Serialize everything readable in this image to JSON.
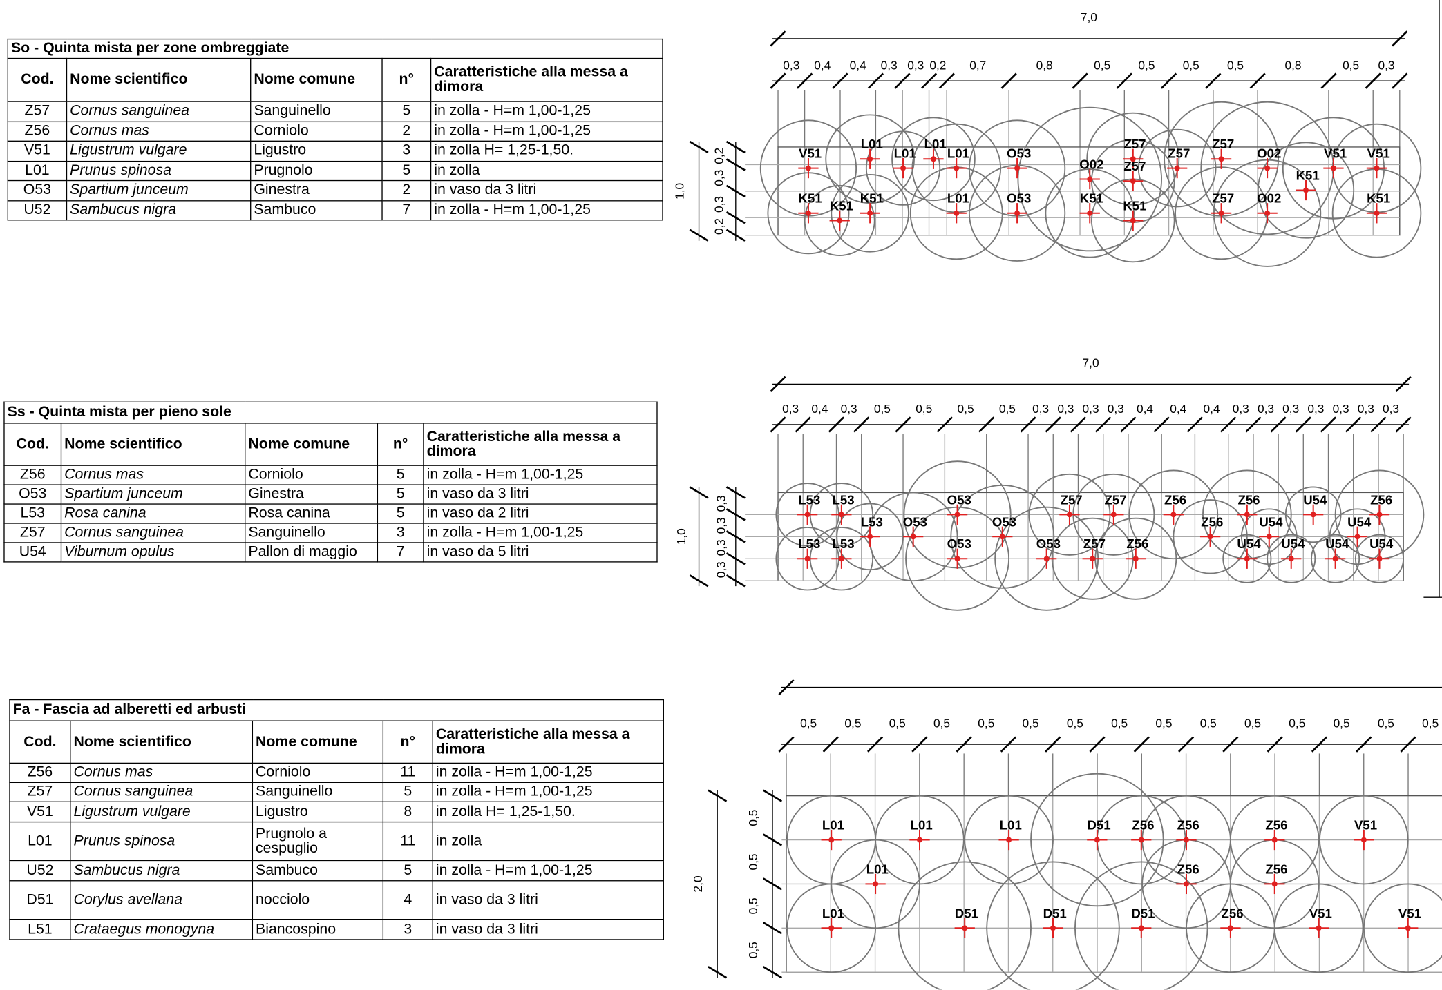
{
  "tables": [
    {
      "title": "So - Quinta mista per zone ombreggiate",
      "headers": [
        "Cod.",
        "Nome scientifico",
        "Nome comune",
        "n°",
        "Caratteristiche alla messa a dimora"
      ],
      "rows": [
        [
          "Z57",
          "Cornus sanguinea",
          "Sanguinello",
          5,
          "in zolla - H=m 1,00-1,25"
        ],
        [
          "Z56",
          "Cornus mas",
          "Corniolo",
          2,
          "in zolla - H=m 1,00-1,25"
        ],
        [
          "V51",
          "Ligustrum vulgare",
          "Ligustro",
          3,
          "in zolla H= 1,25-1,50."
        ],
        [
          "L01",
          "Prunus spinosa",
          "Prugnolo",
          5,
          "in zolla"
        ],
        [
          "O53",
          "Spartium junceum",
          "Ginestra",
          2,
          "in vaso da 3 litri"
        ],
        [
          "U52",
          "Sambucus nigra",
          "Sambuco",
          7,
          "in zolla - H=m 1,00-1,25"
        ]
      ]
    },
    {
      "title": "Ss - Quinta mista per pieno sole",
      "headers": [
        "Cod.",
        "Nome scientifico",
        "Nome comune",
        "n°",
        "Caratteristiche alla messa a dimora"
      ],
      "rows": [
        [
          "Z56",
          "Cornus mas",
          "Corniolo",
          5,
          "in zolla - H=m 1,00-1,25"
        ],
        [
          "O53",
          "Spartium junceum",
          "Ginestra",
          5,
          "in vaso da 3 litri"
        ],
        [
          "L53",
          "Rosa canina",
          "Rosa canina",
          5,
          "in vaso da 2 litri"
        ],
        [
          "Z57",
          "Cornus sanguinea",
          "Sanguinello",
          3,
          "in zolla - H=m 1,00-1,25"
        ],
        [
          "U54",
          "Viburnum opulus",
          "Pallon di maggio",
          7,
          "in vaso da 5 litri"
        ]
      ]
    },
    {
      "title": "Fa - Fascia ad alberetti ed arbusti",
      "headers": [
        "Cod.",
        "Nome scientifico",
        "Nome comune",
        "n°",
        "Caratteristiche alla messa a dimora"
      ],
      "rows": [
        [
          "Z56",
          "Cornus mas",
          "Corniolo",
          11,
          "in zolla - H=m 1,00-1,25"
        ],
        [
          "Z57",
          "Cornus sanguinea",
          "Sanguinello",
          5,
          "in zolla - H=m 1,00-1,25"
        ],
        [
          "V51",
          "Ligustrum vulgare",
          "Ligustro",
          8,
          "in zolla H= 1,25-1,50."
        ],
        [
          "L01",
          "Prunus spinosa",
          "Prugnolo a cespuglio",
          11,
          "in zolla"
        ],
        [
          "U52",
          "Sambucus nigra",
          "Sambuco",
          5,
          "in zolla - H=m 1,00-1,25"
        ],
        [
          "D51",
          "Corylus avellana",
          "nocciolo",
          4,
          "in vaso da 3 litri"
        ],
        [
          "L51",
          "Crataegus monogyna",
          "Biancospino",
          3,
          "in vaso da 3 litri"
        ]
      ]
    }
  ],
  "diagrams": [
    {
      "total": "7,0",
      "segments": [
        {
          "value": 0.3,
          "label": "0,3"
        },
        {
          "value": 0.4,
          "label": "0,4"
        },
        {
          "value": 0.4,
          "label": "0,4"
        },
        {
          "value": 0.3,
          "label": "0,3"
        },
        {
          "value": 0.3,
          "label": "0,3"
        },
        {
          "value": 0.2,
          "label": "0,2"
        },
        {
          "value": 0.7,
          "label": "0,7"
        },
        {
          "value": 0.8,
          "label": "0,8"
        },
        {
          "value": 0.5,
          "label": "0,5"
        },
        {
          "value": 0.5,
          "label": "0,5"
        },
        {
          "value": 0.5,
          "label": "0,5"
        },
        {
          "value": 0.5,
          "label": "0,5"
        },
        {
          "value": 0.8,
          "label": "0,8"
        },
        {
          "value": 0.5,
          "label": "0,5"
        },
        {
          "value": 0.3,
          "label": "0,3"
        }
      ],
      "height": "1,0",
      "height_segments": [
        {
          "value": 0.2,
          "label": "0,2"
        },
        {
          "value": 0.3,
          "label": "0,3"
        },
        {
          "value": 0.3,
          "label": "0,3"
        },
        {
          "value": 0.2,
          "label": "0,2"
        }
      ],
      "plants": [
        "V51",
        "L01",
        "L01",
        "L01",
        "L01",
        "O53",
        "O02",
        "Z57",
        "Z57",
        "Z57",
        "Z57",
        "O02",
        "V51",
        "K51",
        "V51",
        "K51",
        "K51",
        "K51",
        "L01",
        "O53",
        "K51",
        "K51",
        "Z57",
        "O02",
        "K51"
      ]
    },
    {
      "total": "7,0",
      "segments": [
        {
          "value": 0.3,
          "label": "0,3"
        },
        {
          "value": 0.4,
          "label": "0,4"
        },
        {
          "value": 0.3,
          "label": "0,3"
        },
        {
          "value": 0.5,
          "label": "0,5"
        },
        {
          "value": 0.5,
          "label": "0,5"
        },
        {
          "value": 0.5,
          "label": "0,5"
        },
        {
          "value": 0.5,
          "label": "0,5"
        },
        {
          "value": 0.3,
          "label": "0,3"
        },
        {
          "value": 0.3,
          "label": "0,3"
        },
        {
          "value": 0.3,
          "label": "0,3"
        },
        {
          "value": 0.3,
          "label": "0,3"
        },
        {
          "value": 0.4,
          "label": "0,4"
        },
        {
          "value": 0.4,
          "label": "0,4"
        },
        {
          "value": 0.4,
          "label": "0,4"
        },
        {
          "value": 0.3,
          "label": "0,3"
        },
        {
          "value": 0.3,
          "label": "0,3"
        },
        {
          "value": 0.3,
          "label": "0,3"
        },
        {
          "value": 0.3,
          "label": "0,3"
        },
        {
          "value": 0.3,
          "label": "0,3"
        },
        {
          "value": 0.3,
          "label": "0,3"
        },
        {
          "value": 0.3,
          "label": "0,3"
        }
      ],
      "height": "1,0",
      "height_segments": [
        {
          "value": 0.3,
          "label": "0,3"
        },
        {
          "value": 0.3,
          "label": "0,3"
        },
        {
          "value": 0.3,
          "label": "0,3"
        },
        {
          "value": 0.3,
          "label": "0,3"
        }
      ],
      "plants": [
        "L53",
        "L53",
        "O53",
        "Z57",
        "Z57",
        "Z56",
        "Z56",
        "U54",
        "Z56",
        "L53",
        "O53",
        "O53",
        "Z56",
        "U54",
        "U54",
        "L53",
        "L53",
        "O53",
        "O53",
        "Z57",
        "Z56",
        "U54",
        "U54",
        "U54",
        "U54"
      ]
    },
    {
      "segments": [
        {
          "value": 0.5,
          "label": "0,5"
        },
        {
          "value": 0.5,
          "label": "0,5"
        },
        {
          "value": 0.5,
          "label": "0,5"
        },
        {
          "value": 0.5,
          "label": "0,5"
        },
        {
          "value": 0.5,
          "label": "0,5"
        },
        {
          "value": 0.5,
          "label": "0,5"
        },
        {
          "value": 0.5,
          "label": "0,5"
        },
        {
          "value": 0.5,
          "label": "0,5"
        },
        {
          "value": 0.5,
          "label": "0,5"
        },
        {
          "value": 0.5,
          "label": "0,5"
        },
        {
          "value": 0.5,
          "label": "0,5"
        },
        {
          "value": 0.5,
          "label": "0,5"
        },
        {
          "value": 0.5,
          "label": "0,5"
        },
        {
          "value": 0.5,
          "label": "0,5"
        },
        {
          "value": 0.5,
          "label": "0,5"
        }
      ],
      "height": "2,0",
      "height_segments": [
        {
          "value": 0.5,
          "label": "0,5"
        },
        {
          "value": 0.5,
          "label": "0,5"
        },
        {
          "value": 0.5,
          "label": "0,5"
        },
        {
          "value": 0.5,
          "label": "0,5"
        }
      ],
      "plants": [
        "L01",
        "L01",
        "L01",
        "D51",
        "Z56",
        "Z56",
        "Z56",
        "V51",
        "L01",
        "Z56",
        "Z56",
        "L01",
        "D51",
        "D51",
        "D51",
        "Z56",
        "V51",
        "V51"
      ]
    }
  ]
}
